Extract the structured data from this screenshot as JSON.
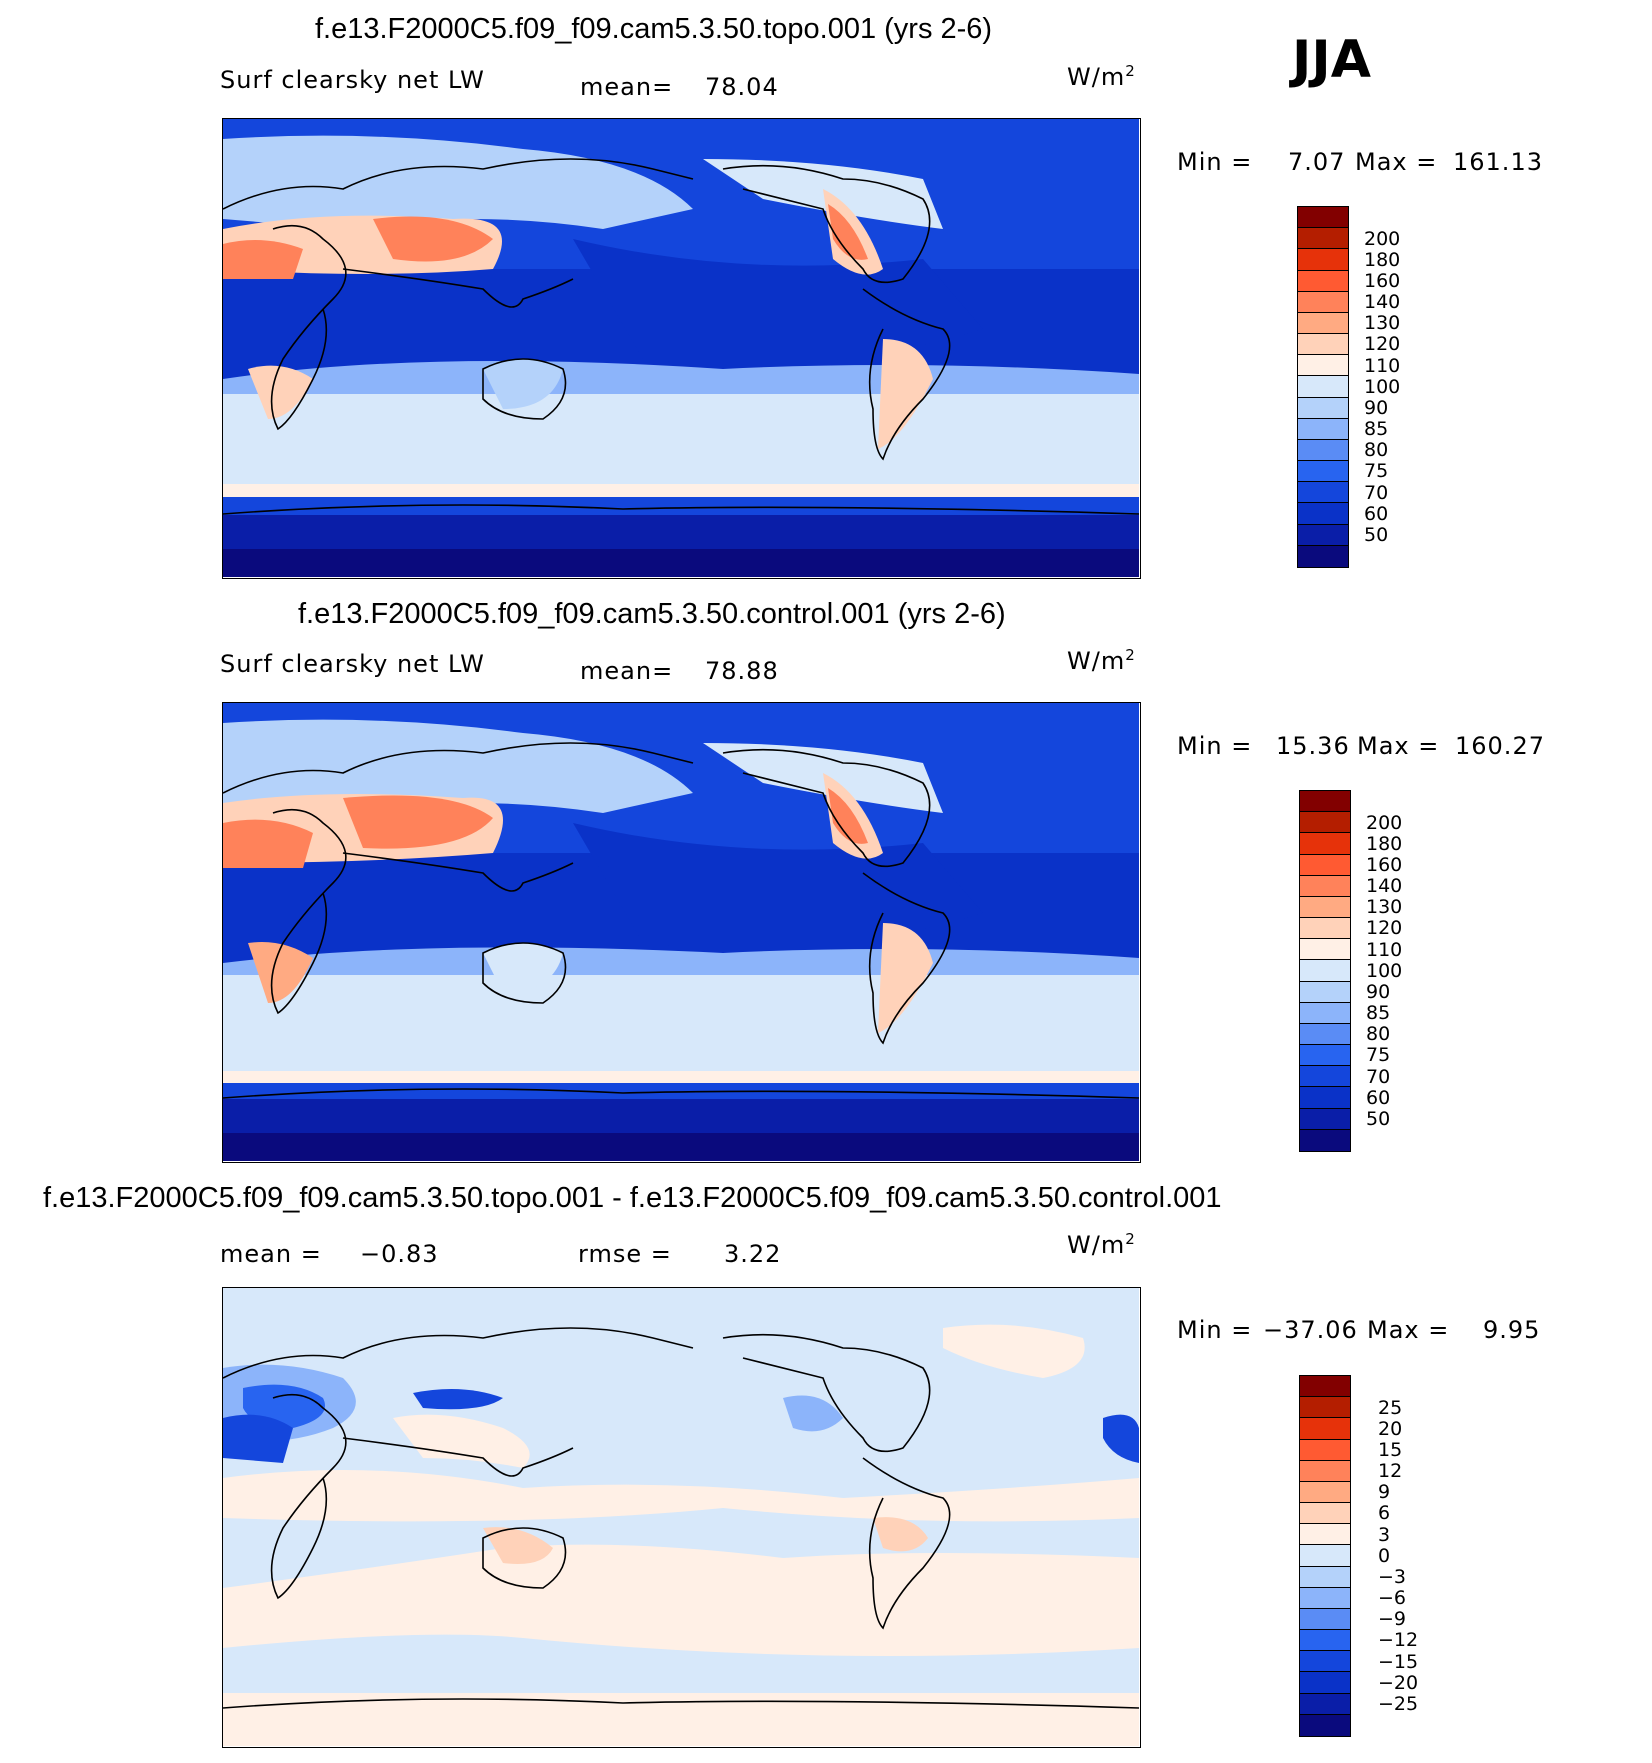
{
  "season": "JJA",
  "colors": {
    "abs_scale": [
      "#0a0a7d",
      "#0a1ea8",
      "#0a32c8",
      "#1446dc",
      "#2864f0",
      "#5a8cf5",
      "#8cb4fa",
      "#b4d2fa",
      "#d7e8fa",
      "#fff0e6",
      "#ffd2b9",
      "#ffaa82",
      "#ff825a",
      "#ff5a32",
      "#e6320a",
      "#b41e00",
      "#820000"
    ],
    "diff_scale": [
      "#0a0a7d",
      "#0a1ea8",
      "#0a32c8",
      "#1446dc",
      "#2864f0",
      "#5a8cf5",
      "#8cb4fa",
      "#b4d2fa",
      "#d7e8fa",
      "#fff0e6",
      "#ffd2b9",
      "#ffaa82",
      "#ff825a",
      "#ff5a32",
      "#e6320a",
      "#b41e00",
      "#820000"
    ]
  },
  "panels": [
    {
      "title": "f.e13.F2000C5.f09_f09.cam5.3.50.topo.001 (yrs 2-6)",
      "variable": "Surf clearsky net LW",
      "stat1_label": "mean=",
      "stat1_value": "78.04",
      "stat2_label": "",
      "stat2_value": "",
      "units": "W/m",
      "units_exp": "2",
      "min_label": "Min =",
      "min_value": "7.07",
      "max_label": "Max =",
      "max_value": "161.13",
      "colorbar_labels": [
        "200",
        "180",
        "160",
        "140",
        "130",
        "120",
        "110",
        "100",
        "90",
        "85",
        "80",
        "75",
        "70",
        "60",
        "50"
      ]
    },
    {
      "title": "f.e13.F2000C5.f09_f09.cam5.3.50.control.001 (yrs 2-6)",
      "variable": "Surf clearsky net LW",
      "stat1_label": "mean=",
      "stat1_value": "78.88",
      "stat2_label": "",
      "stat2_value": "",
      "units": "W/m",
      "units_exp": "2",
      "min_label": "Min =",
      "min_value": "15.36",
      "max_label": "Max =",
      "max_value": "160.27",
      "colorbar_labels": [
        "200",
        "180",
        "160",
        "140",
        "130",
        "120",
        "110",
        "100",
        "90",
        "85",
        "80",
        "75",
        "70",
        "60",
        "50"
      ]
    },
    {
      "title": "f.e13.F2000C5.f09_f09.cam5.3.50.topo.001 - f.e13.F2000C5.f09_f09.cam5.3.50.control.001",
      "variable": "",
      "stat1_label": "mean =",
      "stat1_value": "−0.83",
      "stat2_label": "rmse =",
      "stat2_value": "3.22",
      "units": "W/m",
      "units_exp": "2",
      "min_label": "Min =",
      "min_value": "−37.06",
      "max_label": "Max =",
      "max_value": "9.95",
      "colorbar_labels": [
        "25",
        "20",
        "15",
        "12",
        "9",
        "6",
        "3",
        "0",
        "−3",
        "−6",
        "−9",
        "−12",
        "−15",
        "−20",
        "−25"
      ]
    }
  ]
}
